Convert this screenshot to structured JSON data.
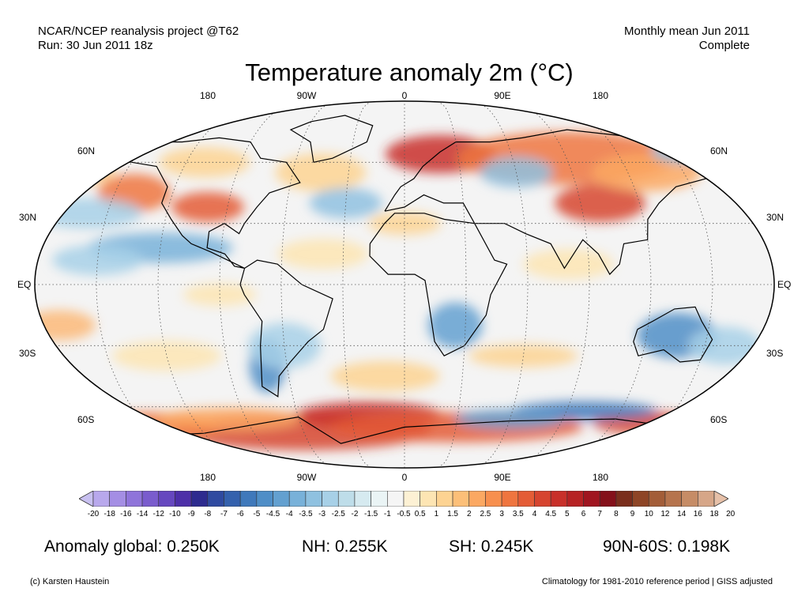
{
  "header": {
    "top_left_1": "NCAR/NCEP reanalysis project @T62",
    "top_left_2": "Run: 30 Jun 2011 18z",
    "top_right_1": "Monthly mean Jun 2011",
    "top_right_2": "Complete",
    "title": "Temperature anomaly 2m (°C)"
  },
  "axes": {
    "top_lon": [
      "180",
      "90W",
      "0",
      "90E",
      "180"
    ],
    "bottom_lon": [
      "180",
      "90W",
      "0",
      "90E",
      "180"
    ],
    "left_lat": [
      "60N",
      "30N",
      "EQ",
      "30S",
      "60S"
    ],
    "right_lat": [
      "60N",
      "30N",
      "EQ",
      "30S",
      "60S"
    ]
  },
  "colorbar": {
    "labels": [
      "-20",
      "-18",
      "-16",
      "-14",
      "-12",
      "-10",
      "-9",
      "-8",
      "-7",
      "-6",
      "-5",
      "-4.5",
      "-4",
      "-3.5",
      "-3",
      "-2.5",
      "-2",
      "-1.5",
      "-1",
      "-0.5",
      "0.5",
      "1",
      "1.5",
      "2",
      "2.5",
      "3",
      "3.5",
      "4",
      "4.5",
      "5",
      "6",
      "7",
      "8",
      "9",
      "10",
      "12",
      "14",
      "16",
      "18",
      "20"
    ],
    "colors": [
      "#c8c0f0",
      "#b8a8ec",
      "#a48ee4",
      "#8f74da",
      "#7a5ccd",
      "#6647bf",
      "#4d2fa8",
      "#2d2b8f",
      "#2f4aa0",
      "#3461ad",
      "#3f79bb",
      "#4f8ec7",
      "#63a0d0",
      "#78b1d9",
      "#8fc1e0",
      "#a7d0e7",
      "#bedde9",
      "#d6eaf0",
      "#eaf4f5",
      "#f5f5f5",
      "#fdf1d4",
      "#fde5b3",
      "#fdd392",
      "#fcbf78",
      "#fba862",
      "#f78f4e",
      "#ef753f",
      "#e45c36",
      "#d6442f",
      "#c8302a",
      "#b62224",
      "#a01520",
      "#84101a",
      "#7a2e1c",
      "#8e4526",
      "#a35d38",
      "#b6744d",
      "#c68c66",
      "#d6a688",
      "#e6c0a8"
    ]
  },
  "stats": {
    "global": "Anomaly global: 0.250K",
    "nh": "NH: 0.255K",
    "sh": "SH: 0.245K",
    "polar": "90N-60S: 0.198K"
  },
  "footer": {
    "left": "(c) Karsten Haustein",
    "right": "Climatology for 1981-2010 reference period | GISS adjusted"
  }
}
